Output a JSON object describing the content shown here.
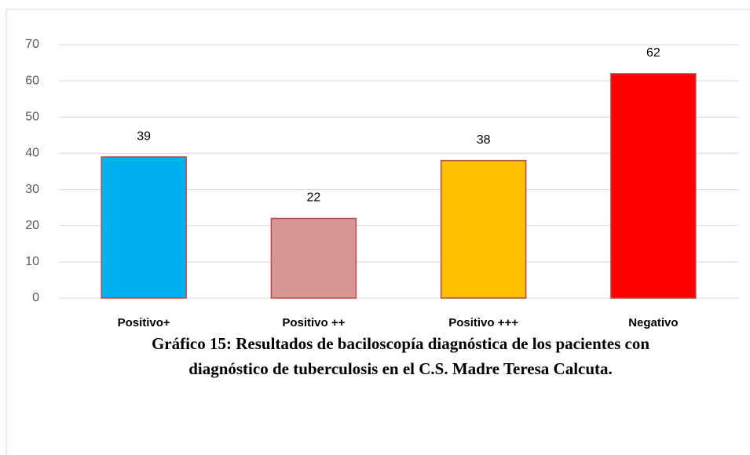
{
  "chart_data": {
    "type": "bar",
    "caption": "Gráfico 15: Resultados de baciloscopía diagnóstica de los pacientes con diagnóstico de tuberculosis en el C.S. Madre Teresa Calcuta.",
    "categories": [
      "Positivo+",
      "Positivo ++",
      "Positivo +++",
      "Negativo"
    ],
    "values": [
      39,
      22,
      38,
      62
    ],
    "colors": [
      "#00b0f0",
      "#d99594",
      "#ffc000",
      "#ff0000"
    ],
    "ylim": [
      0,
      70
    ],
    "yticks": [
      0,
      10,
      20,
      30,
      40,
      50,
      60,
      70
    ],
    "grid": true
  }
}
